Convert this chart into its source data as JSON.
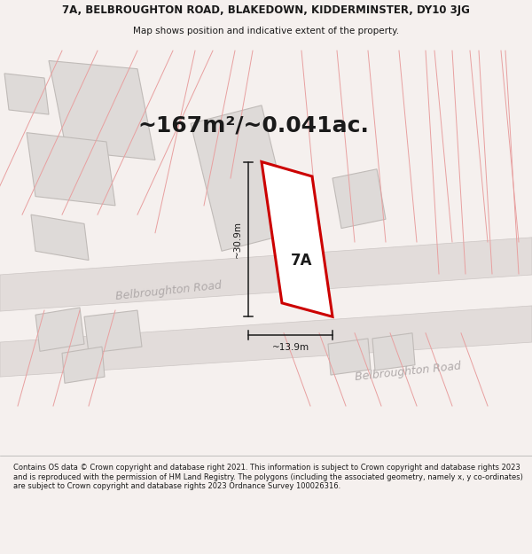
{
  "title_line1": "7A, BELBROUGHTON ROAD, BLAKEDOWN, KIDDERMINSTER, DY10 3JG",
  "title_line2": "Map shows position and indicative extent of the property.",
  "area_text": "~167m²/~0.041ac.",
  "label_7A": "7A",
  "dim_height": "~30.9m",
  "dim_width": "~13.9m",
  "road_label1": "Belbroughton Road",
  "road_label2": "Belbroughton Road",
  "footer_text": "Contains OS data © Crown copyright and database right 2021. This information is subject to Crown copyright and database rights 2023 and is reproduced with the permission of HM Land Registry. The polygons (including the associated geometry, namely x, y co-ordinates) are subject to Crown copyright and database rights 2023 Ordnance Survey 100026316.",
  "bg_color": "#f5f0ee",
  "map_bg": "#f7f3f1",
  "road_fill": "#e2dcda",
  "road_edge": "#ccc6c4",
  "building_fill": "#dedad8",
  "building_stroke": "#c0bbb8",
  "highlight_fill": "#ffffff",
  "highlight_stroke": "#cc0000",
  "pink_line_color": "#e8a0a0",
  "dim_line_color": "#1a1a1a",
  "text_color": "#1a1a1a",
  "road_text_color": "#b0aaaa",
  "footer_bg": "#ffffff",
  "title_fontsize": 8.5,
  "subtitle_fontsize": 7.5,
  "area_fontsize": 18,
  "label_fontsize": 12,
  "dim_fontsize": 7.5,
  "road_fontsize": 9
}
